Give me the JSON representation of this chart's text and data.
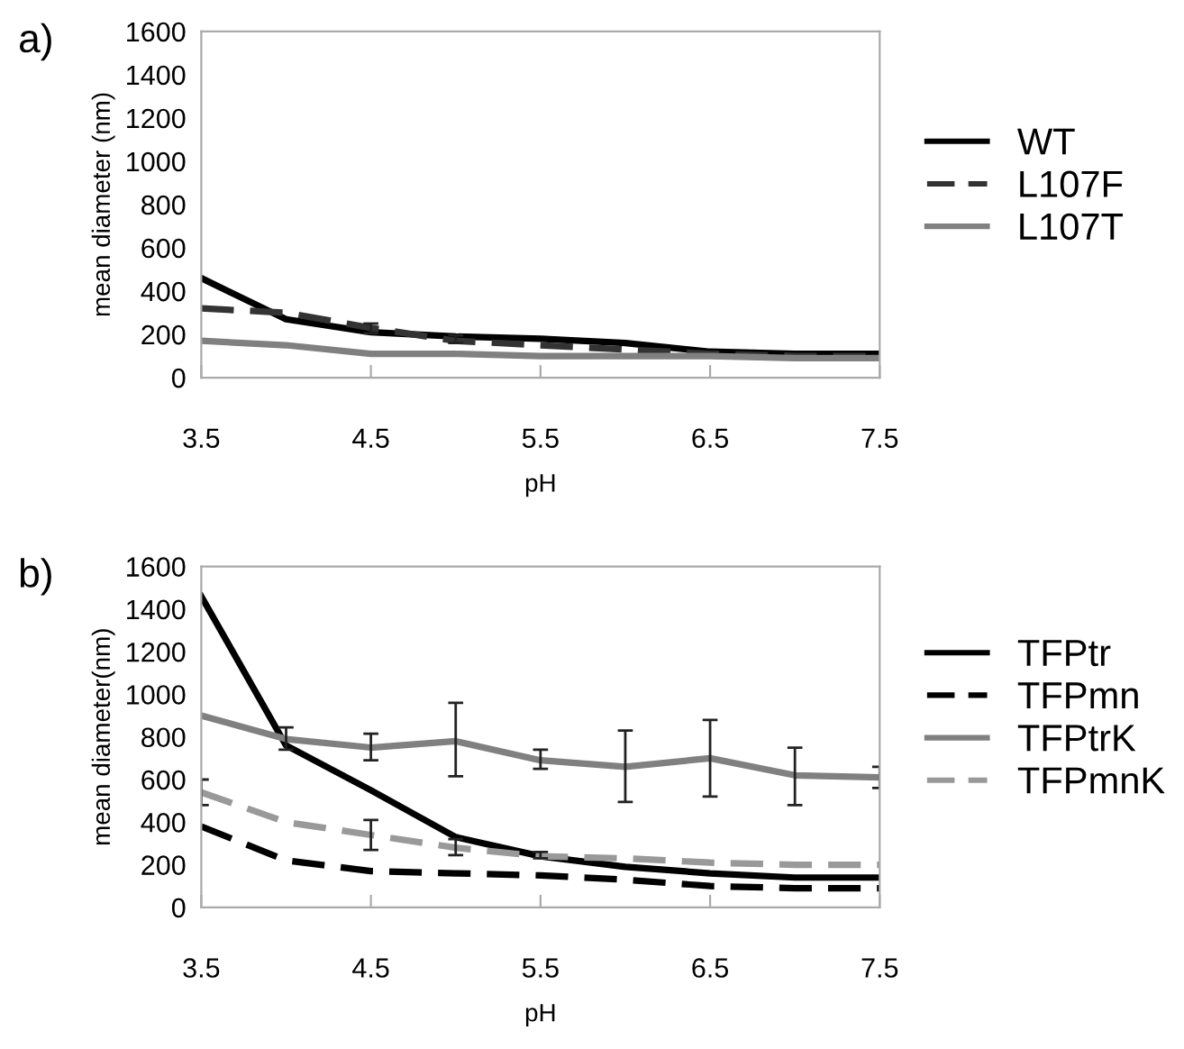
{
  "chart_data": [
    {
      "type": "line",
      "xlabel": "pH",
      "ylabel": "mean diameter (nm)",
      "annotations": [
        "a)"
      ],
      "x": [
        3.5,
        4,
        4.5,
        5,
        5.5,
        6,
        6.5,
        7,
        7.5
      ],
      "xlim": [
        3.5,
        7.5
      ],
      "xticks": [
        3.5,
        4.5,
        5.5,
        6.5,
        7.5
      ],
      "ylim": [
        0,
        1600
      ],
      "yticks": [
        0,
        200,
        400,
        600,
        800,
        1000,
        1200,
        1400,
        1600
      ],
      "grid": false,
      "legend": "right",
      "marker": "none",
      "series": [
        {
          "name": "WT",
          "color": "#000000",
          "line_style": "solid",
          "values": [
            460,
            270,
            210,
            190,
            180,
            160,
            120,
            110,
            110
          ]
        },
        {
          "name": "L107F",
          "color": "#333333",
          "line_style": "dashed",
          "values": [
            320,
            300,
            230,
            170,
            150,
            130,
            110,
            100,
            100
          ],
          "errors": [
            null,
            null,
            [
              205,
              250
            ],
            [
              160,
              195
            ],
            null,
            null,
            null,
            null,
            null
          ]
        },
        {
          "name": "L107T",
          "color": "#808080",
          "line_style": "solid",
          "values": [
            170,
            150,
            110,
            110,
            100,
            100,
            100,
            90,
            90
          ]
        }
      ]
    },
    {
      "type": "line",
      "xlabel": "pH",
      "ylabel": "mean diameter(nm)",
      "annotations": [
        "b)"
      ],
      "x": [
        3.5,
        4,
        4.5,
        5,
        5.5,
        6,
        6.5,
        7,
        7.5
      ],
      "xlim": [
        3.5,
        7.5
      ],
      "xticks": [
        3.5,
        4.5,
        5.5,
        6.5,
        7.5
      ],
      "ylim": [
        0,
        1600
      ],
      "yticks": [
        0,
        200,
        400,
        600,
        800,
        1000,
        1200,
        1400,
        1600
      ],
      "grid": false,
      "legend": "right",
      "marker": "none",
      "series": [
        {
          "name": "TFPtr",
          "color": "#000000",
          "line_style": "solid",
          "values": [
            1460,
            760,
            550,
            330,
            240,
            190,
            160,
            140,
            140
          ]
        },
        {
          "name": "TFPmn",
          "color": "#000000",
          "line_style": "dashed",
          "values": [
            380,
            220,
            170,
            160,
            150,
            130,
            100,
            90,
            90
          ]
        },
        {
          "name": "TFPtrK",
          "color": "#808080",
          "line_style": "solid",
          "values": [
            900,
            790,
            750,
            780,
            690,
            660,
            700,
            620,
            610
          ],
          "errors": [
            null,
            [
              740,
              845
            ],
            [
              690,
              815
            ],
            [
              615,
              960
            ],
            [
              650,
              740
            ],
            [
              495,
              830
            ],
            [
              520,
              880
            ],
            [
              480,
              750
            ],
            [
              560,
              660
            ]
          ]
        },
        {
          "name": "TFPmnK",
          "color": "#999999",
          "line_style": "dashed",
          "values": [
            540,
            400,
            340,
            280,
            240,
            230,
            210,
            200,
            200
          ],
          "errors": [
            [
              480,
              600
            ],
            null,
            [
              270,
              410
            ],
            [
              245,
              320
            ],
            [
              230,
              260
            ],
            null,
            null,
            null,
            null
          ]
        }
      ]
    }
  ]
}
